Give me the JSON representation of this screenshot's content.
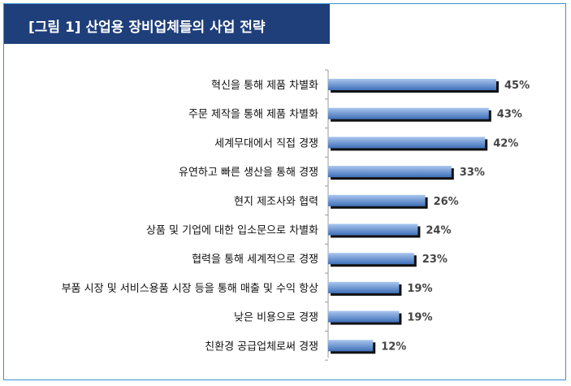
{
  "title": "[그림 1] 산업용 장비업체들의 사업 전략",
  "colors": {
    "title_bg": "#1f3f7a",
    "frame_border": "#3a8fd0",
    "bar_light": "#a9c6ee",
    "bar_dark": "#3f6fb8",
    "bar_shadow": "#111111",
    "value_text": "#444444"
  },
  "chart_data": {
    "type": "bar",
    "orientation": "horizontal",
    "categories": [
      "혁신을 통해 제품 차별화",
      "주문 제작을 통해 제품 차별화",
      "세계무대에서 직접 경쟁",
      "유연하고 빠른 생산을 통해 경쟁",
      "현지 제조사와 협력",
      "상품 및 기업에 대한 입소문으로 차별화",
      "협력을 통해 세계적으로 경쟁",
      "부품 시장 및 서비스용품 시장 등을 통해 매출 및 수익 항상",
      "낮은 비용으로 경쟁",
      "친환경 공급업체로써 경쟁"
    ],
    "values": [
      45,
      43,
      42,
      33,
      26,
      24,
      23,
      19,
      19,
      12
    ],
    "value_labels": [
      "45%",
      "43%",
      "42%",
      "33%",
      "26%",
      "24%",
      "23%",
      "19%",
      "19%",
      "12%"
    ],
    "unit": "%",
    "grid": false
  }
}
